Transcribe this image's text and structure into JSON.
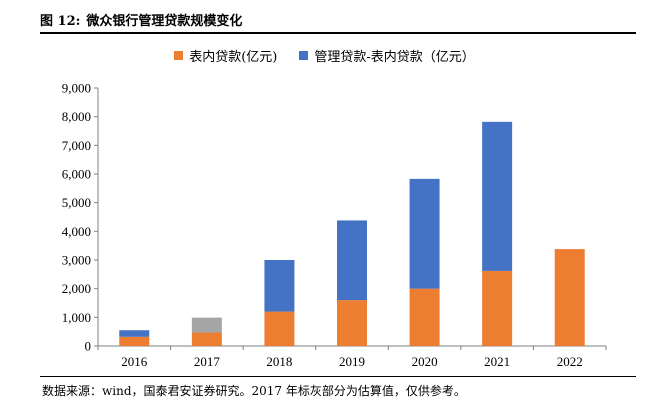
{
  "figure": {
    "number": "图 12:",
    "title": "微众银行管理贷款规模变化",
    "source": "数据来源：wind，国泰君安证券研究。2017 年标灰部分为估算值，仅供参考。"
  },
  "colors": {
    "on_balance": "#ED7D31",
    "managed": "#4472C4",
    "estimated": "#A5A5A5"
  },
  "chart_data": {
    "type": "bar",
    "stacked": true,
    "categories": [
      "2016",
      "2017",
      "2018",
      "2019",
      "2020",
      "2021",
      "2022"
    ],
    "series": [
      {
        "name": "表内贷款(亿元)",
        "values": [
          320,
          470,
          1200,
          1600,
          2000,
          2620,
          3380
        ]
      },
      {
        "name": "管理贷款-表内贷款（亿元）",
        "values": [
          230,
          520,
          1800,
          2780,
          3830,
          5200,
          0
        ]
      }
    ],
    "estimated": {
      "category": "2017",
      "series_index": 1
    },
    "ylim": [
      0,
      9000
    ],
    "yticks": [
      0,
      1000,
      2000,
      3000,
      4000,
      5000,
      6000,
      7000,
      8000,
      9000
    ],
    "ytick_labels": [
      "0",
      "1,000",
      "2,000",
      "3,000",
      "4,000",
      "5,000",
      "6,000",
      "7,000",
      "8,000",
      "9,000"
    ],
    "grid": false,
    "legend_position": "top"
  }
}
